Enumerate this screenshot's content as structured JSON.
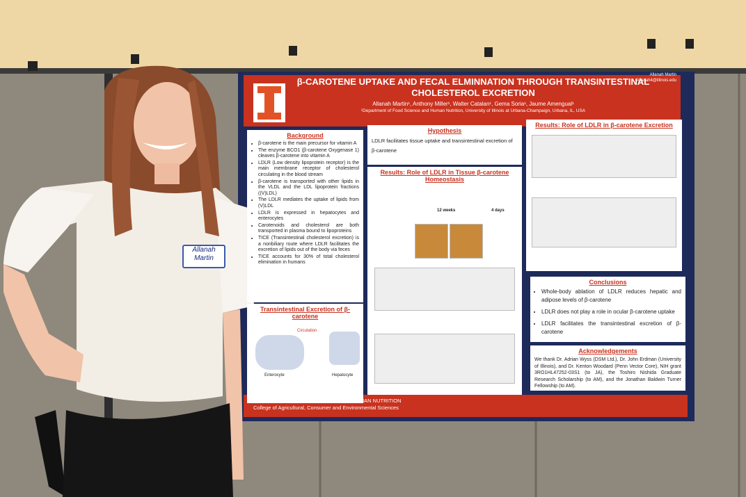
{
  "name_tag": [
    "Allanah",
    "Martin"
  ],
  "poster": {
    "title": "β-CAROTENE UPTAKE AND FECAL ELMINNATION THROUGH TRANSINTESTINAL CHOLESTEROL EXCRETION",
    "authors": "Allanah Martin¹, Anthony Miller¹, Walter Catalan¹, Gema Soria¹, Jaume Amengual¹",
    "affiliation": "¹Department of Food Science and Human Nutrition, University of Illinois at Urbana-Champaign, Urbana, IL, USA",
    "contact": [
      "Allanah Martin",
      "Allanah4@illinois.edu"
    ],
    "background": {
      "heading": "Background",
      "items": [
        "β-carotene is the main precursor for vitamin A",
        "The enzyme BCO1 (β-carotene Oxygenase 1) cleaves β-carotene into vitamin A",
        "LDLR (Low density lipoprotein receptor) is the main membrane receptor of cholesterol circulating in the blood stream",
        "β-carotene is transported with other lipids in the VLDL and the LDL lipoprotein fractions ((V)LDL)",
        "The LDLR mediates the uptake of lipids from (V)LDL",
        "LDLR is expressed in hepatocytes and enterocytes",
        "Carotenoids and cholesterol are both transported in plasma bound to lipoproteins",
        "TICE (Transintestinal cholesterol excretion) is a nonbiliary route where LDLR facilitates the excretion of lipids out of the body via feces",
        "TICE accounts for 30% of total cholesterol elimination in humans"
      ]
    },
    "tice": {
      "heading": "Transintestinal Excretion of β-carotene",
      "labels": [
        "Enterocyte",
        "Hepatocyte",
        "Circulation"
      ]
    },
    "hypothesis": {
      "heading": "Hypothesis",
      "text": "LDLR facilitates tissue uptake and transintestinal excretion of β-carotene"
    },
    "results_tissue": {
      "heading": "Results: Role of LDLR in Tissue β-carotene Homeostasis",
      "labels": [
        "12 weeks",
        "4 days"
      ]
    },
    "results_excretion": {
      "heading": "Results: Role of LDLR in β-carotene Excretion"
    },
    "conclusions": {
      "heading": "Conclusions",
      "items": [
        "Whole-body ablation of LDLR reduces hepatic and adipose levels of β-carotene",
        "LDLR does not play a role in ocular β-carotene uptake",
        "LDLR facilitates the transintestinal excretion of β-carotene"
      ]
    },
    "acknowledgements": {
      "heading": "Acknowledgements",
      "text": "We thank Dr. Adrian Wyss (DSM Ltd.), Dr. John Erdman (University of Illinois), and Dr. Kenton Woodard (Penn Vector Core), NIH grant 3RO1HL47252-03S1 (to JA), the Toshiro Nishida Graduate Research Scholarship (to AM), and the Jonathan Baldwin Turner Fellowship (to AM)."
    },
    "footer": [
      "DEPARTMENT OF FOOD SCIENCE AND HUMAN NUTRITION",
      "College of Agricultural, Consumer and Environmental Sciences"
    ]
  }
}
